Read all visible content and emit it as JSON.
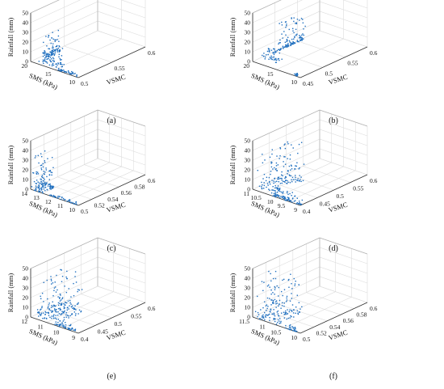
{
  "chart_data": [
    {
      "type": "scatter",
      "panel_label": "(a)",
      "xlabel": "SMS (kPa)",
      "ylabel": "VSMC",
      "zlabel": "Rainfall (mm)",
      "x_ticks": [
        "20",
        "15",
        "10"
      ],
      "y_ticks": [
        "0.5",
        "0.55",
        "0.6"
      ],
      "z_ticks": [
        "0",
        "10",
        "20",
        "30",
        "40",
        "50"
      ],
      "xlim": [
        10,
        20
      ],
      "ylim": [
        0.48,
        0.6
      ],
      "zlim": [
        0,
        50
      ],
      "clusters": [
        {
          "sms": [
            19.5,
            15.5
          ],
          "vsmc": [
            0.48,
            0.485
          ],
          "max_rain": 4,
          "n": 40
        },
        {
          "sms": [
            15.5,
            11.0
          ],
          "vsmc": [
            0.485,
            0.5
          ],
          "max_rain": 12,
          "n": 60
        },
        {
          "sms": [
            11.0,
            10.0
          ],
          "vsmc": [
            0.5,
            0.53
          ],
          "max_rain": 22,
          "n": 90
        }
      ],
      "color": "#1f6fbf"
    },
    {
      "type": "scatter",
      "panel_label": "(b)",
      "xlabel": "SMS (kPa)",
      "ylabel": "VSMC",
      "zlabel": "Rainfall (mm)",
      "x_ticks": [
        "20",
        "15",
        "10"
      ],
      "y_ticks": [
        "0.45",
        "0.5",
        "0.55",
        "0.6"
      ],
      "z_ticks": [
        "0",
        "10",
        "20",
        "30",
        "40",
        "50"
      ],
      "xlim": [
        10,
        22
      ],
      "ylim": [
        0.43,
        0.6
      ],
      "zlim": [
        0,
        50
      ],
      "clusters": [
        {
          "sms": [
            21.0,
            20.5
          ],
          "vsmc": [
            0.43,
            0.435
          ],
          "max_rain": 2,
          "n": 15
        },
        {
          "sms": [
            14.0,
            10.0
          ],
          "vsmc": [
            0.45,
            0.47
          ],
          "max_rain": 10,
          "n": 40
        },
        {
          "sms": [
            10.5,
            10.0
          ],
          "vsmc": [
            0.48,
            0.56
          ],
          "max_rain": 30,
          "n": 130
        }
      ],
      "color": "#1f6fbf"
    },
    {
      "type": "scatter",
      "panel_label": "(c)",
      "xlabel": "SMS (kPa)",
      "ylabel": "VSMC",
      "zlabel": "Rainfall (mm)",
      "x_ticks": [
        "14",
        "13",
        "12",
        "11",
        "10"
      ],
      "y_ticks": [
        "0.5",
        "0.52",
        "0.54",
        "0.56",
        "0.58",
        "0.6"
      ],
      "z_ticks": [
        "0",
        "10",
        "20",
        "30",
        "40",
        "50"
      ],
      "xlim": [
        10,
        14
      ],
      "ylim": [
        0.5,
        0.6
      ],
      "zlim": [
        0,
        50
      ],
      "clusters": [
        {
          "sms": [
            13.8,
            11.5
          ],
          "vsmc": [
            0.5,
            0.502
          ],
          "max_rain": 3,
          "n": 40
        },
        {
          "sms": [
            11.0,
            10.0
          ],
          "vsmc": [
            0.5,
            0.52
          ],
          "max_rain": 35,
          "n": 140
        }
      ],
      "color": "#1f6fbf"
    },
    {
      "type": "scatter",
      "panel_label": "(d)",
      "xlabel": "SMS (kPa)",
      "ylabel": "VSMC",
      "zlabel": "Rainfall (mm)",
      "x_ticks": [
        "11",
        "10.5",
        "10",
        "9.5",
        "9"
      ],
      "y_ticks": [
        "0.4",
        "0.45",
        "0.5",
        "0.55",
        "0.6"
      ],
      "z_ticks": [
        "0",
        "10",
        "20",
        "30",
        "40",
        "50"
      ],
      "xlim": [
        9,
        11
      ],
      "ylim": [
        0.4,
        0.6
      ],
      "zlim": [
        0,
        50
      ],
      "clusters": [
        {
          "sms": [
            11.0,
            9.8
          ],
          "vsmc": [
            0.4,
            0.41
          ],
          "max_rain": 10,
          "n": 80
        },
        {
          "sms": [
            9.8,
            9.0
          ],
          "vsmc": [
            0.41,
            0.5
          ],
          "max_rain": 40,
          "n": 160
        }
      ],
      "color": "#1f6fbf"
    },
    {
      "type": "scatter",
      "panel_label": "(e)",
      "xlabel": "SMS (kPa)",
      "ylabel": "VSMC",
      "zlabel": "Rainfall (mm)",
      "x_ticks": [
        "12",
        "11",
        "10",
        "9"
      ],
      "y_ticks": [
        "0.4",
        "0.45",
        "0.5",
        "0.55",
        "0.6"
      ],
      "z_ticks": [
        "0",
        "10",
        "20",
        "30",
        "40",
        "50"
      ],
      "xlim": [
        9,
        12
      ],
      "ylim": [
        0.38,
        0.6
      ],
      "zlim": [
        0,
        50
      ],
      "clusters": [
        {
          "sms": [
            11.8,
            10.5
          ],
          "vsmc": [
            0.38,
            0.39
          ],
          "max_rain": 6,
          "n": 50
        },
        {
          "sms": [
            10.5,
            9.0
          ],
          "vsmc": [
            0.39,
            0.48
          ],
          "max_rain": 40,
          "n": 190
        }
      ],
      "color": "#1f6fbf"
    },
    {
      "type": "scatter",
      "panel_label": "(f)",
      "xlabel": "SMS (kPa)",
      "ylabel": "VSMC",
      "zlabel": "Rainfall (mm)",
      "x_ticks": [
        "11.5",
        "11",
        "10.5",
        "10"
      ],
      "y_ticks": [
        "0.5",
        "0.52",
        "0.54",
        "0.56",
        "0.58",
        "0.6"
      ],
      "z_ticks": [
        "0",
        "10",
        "20",
        "30",
        "40",
        "50"
      ],
      "xlim": [
        10,
        11.5
      ],
      "ylim": [
        0.5,
        0.6
      ],
      "zlim": [
        0,
        50
      ],
      "clusters": [
        {
          "sms": [
            11.4,
            11.0
          ],
          "vsmc": [
            0.5,
            0.501
          ],
          "max_rain": 5,
          "n": 30
        },
        {
          "sms": [
            10.8,
            10.0
          ],
          "vsmc": [
            0.5,
            0.54
          ],
          "max_rain": 42,
          "n": 170
        }
      ],
      "color": "#1f6fbf"
    }
  ]
}
